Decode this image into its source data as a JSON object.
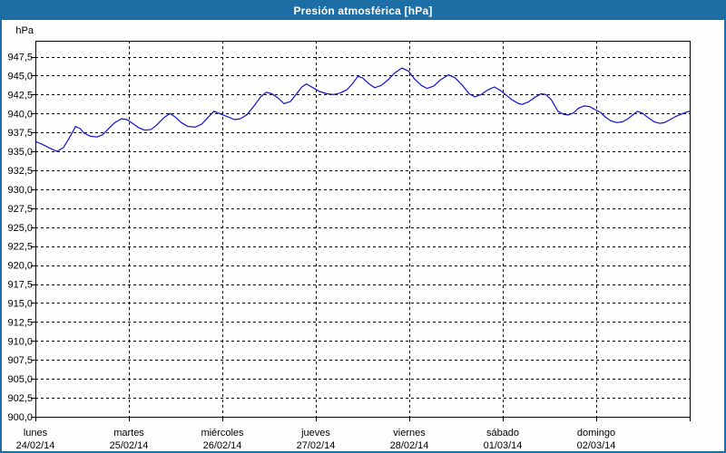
{
  "window": {
    "title": "Presión atmosférica [hPa]"
  },
  "colors": {
    "titlebar": "#1d6ea4",
    "window_border": "#1d6ea4",
    "background": "#fdfefd",
    "line": "#1111cc",
    "grid": "#000000",
    "text": "#000000"
  },
  "chart_data": {
    "type": "line",
    "title": "Presión atmosférica [hPa]",
    "ylabel": "hPa",
    "ylim": [
      900.0,
      947.5
    ],
    "y_tick_step": 2.5,
    "decimal_separator": ",",
    "grid": "dashed",
    "legend_position": "none",
    "y_tick_labels": [
      "900,0",
      "902,5",
      "905,0",
      "907,5",
      "910,0",
      "912,5",
      "915,0",
      "917,5",
      "920,0",
      "922,5",
      "925,0",
      "927,5",
      "930,0",
      "932,5",
      "935,0",
      "937,5",
      "940,0",
      "942,5",
      "945,0",
      "947,5"
    ],
    "days": [
      {
        "name": "lunes",
        "date": "24/02/14"
      },
      {
        "name": "martes",
        "date": "25/02/14"
      },
      {
        "name": "miércoles",
        "date": "26/02/14"
      },
      {
        "name": "jueves",
        "date": "27/02/14"
      },
      {
        "name": "viernes",
        "date": "28/02/14"
      },
      {
        "name": "sábado",
        "date": "01/03/14"
      },
      {
        "name": "domingo",
        "date": "02/03/14"
      }
    ],
    "series": [
      {
        "name": "presión atmosférica",
        "color": "#1111cc",
        "x_days": [
          0.0,
          0.06,
          0.11,
          0.16,
          0.23,
          0.3,
          0.35,
          0.4,
          0.43,
          0.48,
          0.52,
          0.59,
          0.66,
          0.72,
          0.79,
          0.85,
          0.92,
          0.98,
          1.05,
          1.11,
          1.17,
          1.24,
          1.3,
          1.37,
          1.44,
          1.5,
          1.56,
          1.63,
          1.71,
          1.78,
          1.84,
          1.91,
          1.97,
          2.05,
          2.13,
          2.19,
          2.26,
          2.34,
          2.41,
          2.47,
          2.53,
          2.6,
          2.66,
          2.73,
          2.8,
          2.85,
          2.9,
          2.97,
          3.04,
          3.12,
          3.19,
          3.26,
          3.33,
          3.39,
          3.45,
          3.5,
          3.57,
          3.63,
          3.7,
          3.77,
          3.84,
          3.92,
          3.99,
          4.06,
          4.13,
          4.19,
          4.26,
          4.33,
          4.42,
          4.49,
          4.57,
          4.64,
          4.7,
          4.77,
          4.84,
          4.91,
          4.98,
          5.04,
          5.1,
          5.17,
          5.21,
          5.27,
          5.34,
          5.41,
          5.46,
          5.52,
          5.59,
          5.65,
          5.7,
          5.76,
          5.81,
          5.87,
          5.93,
          5.99,
          6.05,
          6.1,
          6.16,
          6.22,
          6.28,
          6.34,
          6.4,
          6.44,
          6.5,
          6.56,
          6.62,
          6.68,
          6.73,
          6.79,
          6.85,
          6.91,
          6.97,
          7.0
        ],
        "values": [
          936.3,
          936.0,
          935.7,
          935.4,
          935.0,
          935.5,
          936.5,
          937.6,
          938.3,
          938.0,
          937.4,
          937.0,
          936.9,
          937.2,
          938.1,
          938.8,
          939.3,
          939.2,
          938.6,
          938.1,
          937.8,
          937.9,
          938.5,
          939.4,
          940.0,
          939.5,
          938.8,
          938.3,
          938.2,
          938.6,
          939.4,
          940.3,
          940.0,
          939.6,
          939.2,
          939.3,
          939.8,
          941.0,
          942.2,
          942.8,
          942.6,
          942.0,
          941.3,
          941.6,
          942.7,
          943.5,
          943.9,
          943.4,
          942.9,
          942.6,
          942.5,
          942.7,
          943.1,
          943.9,
          944.9,
          944.7,
          943.9,
          943.4,
          943.7,
          944.4,
          945.3,
          946.0,
          945.6,
          944.5,
          943.7,
          943.3,
          943.6,
          944.4,
          945.1,
          944.7,
          943.7,
          942.6,
          942.2,
          942.5,
          943.1,
          943.5,
          943.0,
          942.4,
          941.8,
          941.3,
          941.2,
          941.5,
          942.1,
          942.6,
          942.5,
          941.8,
          940.3,
          939.9,
          939.8,
          940.1,
          940.7,
          941.0,
          940.9,
          940.5,
          940.1,
          939.5,
          939.0,
          938.8,
          938.9,
          939.3,
          939.9,
          940.3,
          940.0,
          939.4,
          938.9,
          938.7,
          938.8,
          939.2,
          939.6,
          939.9,
          940.2,
          940.3
        ]
      }
    ]
  }
}
